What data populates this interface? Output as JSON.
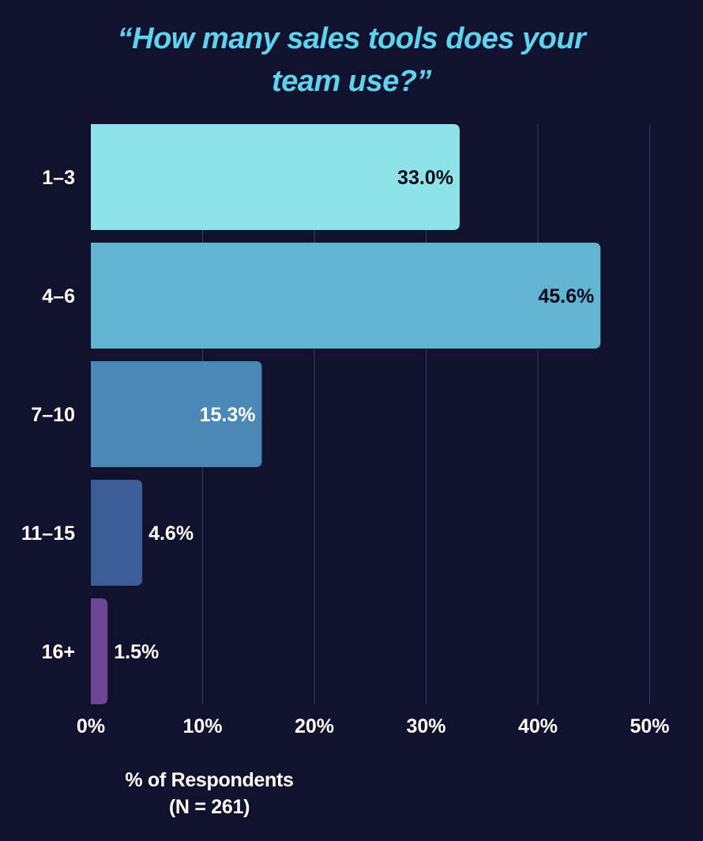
{
  "title_lines": [
    "“How many sales tools does your",
    "team use?”"
  ],
  "xlabel_lines": [
    "% of Respondents",
    "(N = 261)"
  ],
  "colors": {
    "background": "#11122e",
    "title": "#5fd3ee",
    "grid": "#3a3d5e",
    "text": "#ffffff",
    "label_dark": "#0b0b1a"
  },
  "chart_data": {
    "type": "bar",
    "orientation": "horizontal",
    "title": "“How many sales tools does your team use?”",
    "xlabel": "% of Respondents (N = 261)",
    "ylabel": "",
    "categories": [
      "1–3",
      "4–6",
      "7–10",
      "11–15",
      "16+"
    ],
    "values": [
      33.0,
      45.6,
      15.3,
      4.6,
      1.5
    ],
    "value_labels": [
      "33.0%",
      "45.6%",
      "15.3%",
      "4.6%",
      "1.5%"
    ],
    "bar_colors": [
      "#8ee3e8",
      "#62b4d3",
      "#4a89b5",
      "#3d5d96",
      "#6c4593"
    ],
    "label_inside": [
      true,
      true,
      true,
      false,
      false
    ],
    "label_dark": [
      true,
      true,
      false,
      false,
      false
    ],
    "xlim": [
      0,
      50
    ],
    "xticks": [
      0,
      10,
      20,
      30,
      40,
      50
    ],
    "xtick_labels": [
      "0%",
      "10%",
      "20%",
      "30%",
      "40%",
      "50%"
    ],
    "grid": true
  }
}
